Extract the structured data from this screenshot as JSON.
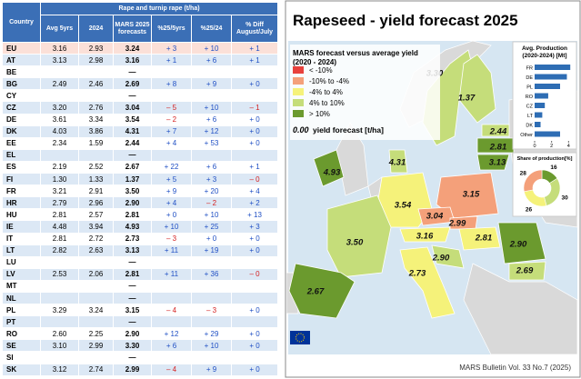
{
  "table": {
    "corner": "Country",
    "group": "Rape and turnip rape (t/ha)",
    "columns": [
      "Avg 5yrs",
      "2024",
      "MARS 2025 forecasts",
      "%25/5yrs",
      "%25/24",
      "% Diff August/July"
    ],
    "rows": [
      [
        "EU",
        "3.16",
        "2.93",
        "3.24",
        "+ 3",
        "+ 10",
        "+ 1"
      ],
      [
        "AT",
        "3.13",
        "2.98",
        "3.16",
        "+ 1",
        "+ 6",
        "+ 1"
      ],
      [
        "BE",
        null,
        null,
        "—",
        null,
        null,
        null
      ],
      [
        "BG",
        "2.49",
        "2.46",
        "2.69",
        "+ 8",
        "+ 9",
        "+ 0"
      ],
      [
        "CY",
        null,
        null,
        "—",
        null,
        null,
        null
      ],
      [
        "CZ",
        "3.20",
        "2.76",
        "3.04",
        "– 5",
        "+ 10",
        "– 1"
      ],
      [
        "DE",
        "3.61",
        "3.34",
        "3.54",
        "– 2",
        "+ 6",
        "+ 0"
      ],
      [
        "DK",
        "4.03",
        "3.86",
        "4.31",
        "+ 7",
        "+ 12",
        "+ 0"
      ],
      [
        "EE",
        "2.34",
        "1.59",
        "2.44",
        "+ 4",
        "+ 53",
        "+ 0"
      ],
      [
        "EL",
        null,
        null,
        "—",
        null,
        null,
        null
      ],
      [
        "ES",
        "2.19",
        "2.52",
        "2.67",
        "+ 22",
        "+ 6",
        "+ 1"
      ],
      [
        "FI",
        "1.30",
        "1.33",
        "1.37",
        "+ 5",
        "+ 3",
        "– 0"
      ],
      [
        "FR",
        "3.21",
        "2.91",
        "3.50",
        "+ 9",
        "+ 20",
        "+ 4"
      ],
      [
        "HR",
        "2.79",
        "2.96",
        "2.90",
        "+ 4",
        "– 2",
        "+ 2"
      ],
      [
        "HU",
        "2.81",
        "2.57",
        "2.81",
        "+ 0",
        "+ 10",
        "+ 13"
      ],
      [
        "IE",
        "4.48",
        "3.94",
        "4.93",
        "+ 10",
        "+ 25",
        "+ 3"
      ],
      [
        "IT",
        "2.81",
        "2.72",
        "2.73",
        "– 3",
        "+ 0",
        "+ 0"
      ],
      [
        "LT",
        "2.82",
        "2.63",
        "3.13",
        "+ 11",
        "+ 19",
        "+ 0"
      ],
      [
        "LU",
        null,
        null,
        "—",
        null,
        null,
        null
      ],
      [
        "LV",
        "2.53",
        "2.06",
        "2.81",
        "+ 11",
        "+ 36",
        "– 0"
      ],
      [
        "MT",
        null,
        null,
        "—",
        null,
        null,
        null
      ],
      [
        "NL",
        null,
        null,
        "—",
        null,
        null,
        null
      ],
      [
        "PL",
        "3.29",
        "3.24",
        "3.15",
        "– 4",
        "– 3",
        "+ 0"
      ],
      [
        "PT",
        null,
        null,
        "—",
        null,
        null,
        null
      ],
      [
        "RO",
        "2.60",
        "2.25",
        "2.90",
        "+ 12",
        "+ 29",
        "+ 0"
      ],
      [
        "SE",
        "3.10",
        "2.99",
        "3.30",
        "+ 6",
        "+ 10",
        "+ 0"
      ],
      [
        "SI",
        null,
        null,
        "—",
        null,
        null,
        null
      ],
      [
        "SK",
        "3.12",
        "2.74",
        "2.99",
        "– 4",
        "+ 9",
        "+ 0"
      ]
    ]
  },
  "map": {
    "title": "Rapeseed - yield forecast 2025",
    "legend": {
      "title": [
        "MARS forecast versus average yield",
        "(2020 - 2024)"
      ],
      "items": [
        {
          "label": "< -10%",
          "color": "#e8413c"
        },
        {
          "label": "-10% to -4%",
          "color": "#f4a07a"
        },
        {
          "label": "-4% to 4%",
          "color": "#f5f27a"
        },
        {
          "label": "4% to 10%",
          "color": "#c5dd7a"
        },
        {
          "label": "> 10%",
          "color": "#6b9a2e"
        }
      ],
      "sample": "0.00",
      "sample_text": "yield forecast [t/ha]"
    },
    "regions": [
      {
        "label": "3.30",
        "color": "#c5dd7a"
      },
      {
        "label": "1.37",
        "color": "#c5dd7a"
      },
      {
        "label": "2.44",
        "color": "#c5dd7a"
      },
      {
        "label": "2.81",
        "color": "#6b9a2e"
      },
      {
        "label": "3.13",
        "color": "#6b9a2e"
      },
      {
        "label": "4.31",
        "color": "#c5dd7a"
      },
      {
        "label": "4.93",
        "color": "#6b9a2e"
      },
      {
        "label": "3.15",
        "color": "#f4a07a"
      },
      {
        "label": "3.54",
        "color": "#f5f27a"
      },
      {
        "label": "3.04",
        "color": "#f4a07a"
      },
      {
        "label": "2.99",
        "color": "#f4a07a"
      },
      {
        "label": "3.16",
        "color": "#f5f27a"
      },
      {
        "label": "2.81",
        "color": "#f5f27a"
      },
      {
        "label": "2.90",
        "color": "#6b9a2e"
      },
      {
        "label": "2.69",
        "color": "#c5dd7a"
      },
      {
        "label": "2.90",
        "color": "#c5dd7a"
      },
      {
        "label": "3.50",
        "color": "#c5dd7a"
      },
      {
        "label": "2.67",
        "color": "#6b9a2e"
      },
      {
        "label": "2.73",
        "color": "#f5f27a"
      }
    ],
    "production": {
      "title": [
        "Avg. Production",
        "(2020-2024) [Mt]"
      ],
      "categories": [
        "FR",
        "DE",
        "PL",
        "RO",
        "CZ",
        "LT",
        "DK",
        "Other"
      ],
      "values": [
        4.2,
        3.8,
        3.0,
        1.6,
        1.2,
        0.9,
        0.7,
        3.0
      ],
      "color": "#2e6db4",
      "xlim": [
        0,
        4.5
      ],
      "xticks": [
        0,
        2,
        4
      ]
    },
    "share": {
      "title": "Share of production[%]",
      "values": [
        16,
        30,
        26,
        28
      ],
      "colors": [
        "#6b9a2e",
        "#c5dd7a",
        "#f5f27a",
        "#f4a07a"
      ]
    },
    "footer": "MARS Bulletin Vol. 33 No.7 (2025)"
  }
}
